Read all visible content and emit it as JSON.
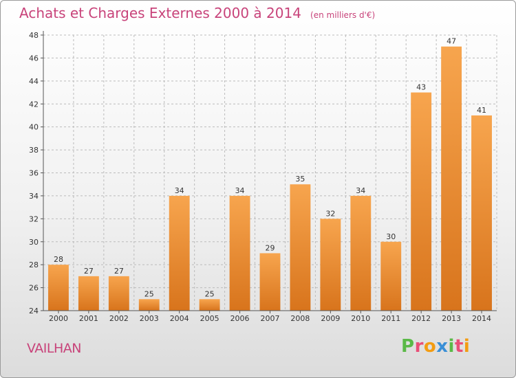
{
  "chart_data": {
    "type": "bar",
    "title": "Achats et Charges Externes 2000 à 2014",
    "unit_label": "(en milliers d'€)",
    "categories": [
      "2000",
      "2001",
      "2002",
      "2003",
      "2004",
      "2005",
      "2006",
      "2007",
      "2008",
      "2009",
      "2010",
      "2011",
      "2012",
      "2013",
      "2014"
    ],
    "values": [
      28,
      27,
      27,
      25,
      34,
      25,
      34,
      29,
      35,
      32,
      34,
      30,
      43,
      47,
      41
    ],
    "ylim": [
      24,
      48
    ],
    "yticks": [
      24,
      26,
      28,
      30,
      32,
      34,
      36,
      38,
      40,
      42,
      44,
      46,
      48
    ],
    "grid": true,
    "xlabel": "",
    "ylabel": ""
  },
  "commune": "VAILHAN",
  "brand": {
    "letters": [
      "P",
      "r",
      "o",
      "x",
      "i",
      "t",
      "i"
    ],
    "colors": [
      "#5ab947",
      "#e94e77",
      "#f39c12",
      "#3a8fd6",
      "#5ab947",
      "#e94e77",
      "#f39c12"
    ]
  },
  "colors": {
    "bar_light": "#f7a54e",
    "bar_dark": "#d8741c",
    "accent": "#c8437a"
  }
}
